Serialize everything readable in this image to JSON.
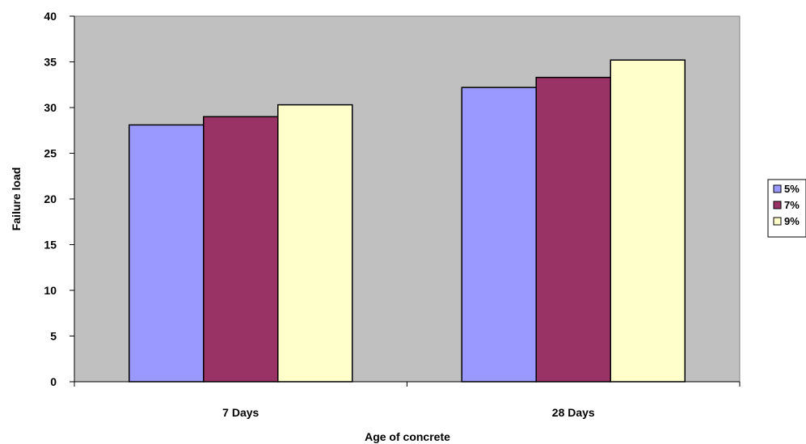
{
  "chart_data": {
    "type": "bar",
    "categories": [
      "7 Days",
      "28 Days"
    ],
    "series": [
      {
        "name": "5%",
        "values": [
          28.1,
          32.2
        ],
        "color": "#9999FF"
      },
      {
        "name": "7%",
        "values": [
          29.0,
          33.3
        ],
        "color": "#993366"
      },
      {
        "name": "9%",
        "values": [
          30.3,
          35.2
        ],
        "color": "#FFFFCC"
      }
    ],
    "title": "",
    "xlabel": "Age of concrete",
    "ylabel": "Failure load",
    "ylim": [
      0,
      40
    ],
    "yticks": [
      0,
      5,
      10,
      15,
      20,
      25,
      30,
      35,
      40
    ],
    "grid": false,
    "legend_position": "right",
    "plot_background": "#C0C0C0"
  }
}
